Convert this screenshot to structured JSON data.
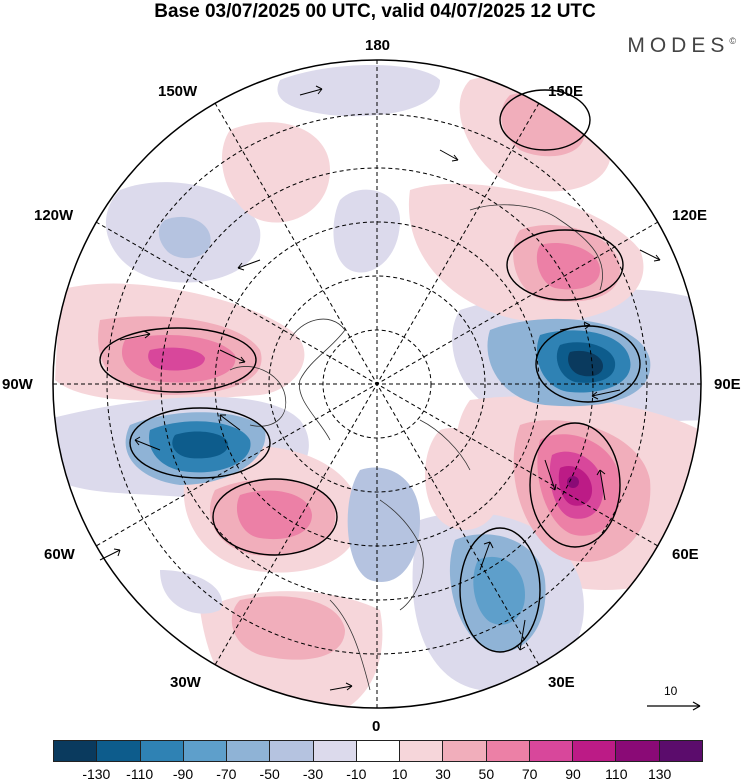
{
  "title": "Base 03/07/2025 00 UTC, valid 04/07/2025 12 UTC",
  "brand": {
    "name": "MODES",
    "mark": "©"
  },
  "longitude_labels": {
    "lon_180": "180",
    "lon_150e": "150E",
    "lon_120e": "120E",
    "lon_90e": "90E",
    "lon_60e": "60E",
    "lon_30e": "30E",
    "lon_0": "0",
    "lon_30w": "30W",
    "lon_60w": "60W",
    "lon_90w": "90W",
    "lon_120w": "120W",
    "lon_150w": "150W"
  },
  "reference_vector": {
    "label": "10"
  },
  "colorbar": {
    "colors": [
      "#0a3a5e",
      "#0d5c8c",
      "#2f82b4",
      "#5e9fcb",
      "#8fb3d6",
      "#b5c3e0",
      "#dcdaec",
      "#ffffff",
      "#f6d6da",
      "#f1aebb",
      "#ec80a6",
      "#d8479b",
      "#bc1b86",
      "#8a0a76",
      "#5b0c6c"
    ],
    "ticks": [
      "-130",
      "-110",
      "-90",
      "-70",
      "-50",
      "-30",
      "-10",
      "10",
      "30",
      "50",
      "70",
      "90",
      "110",
      "130"
    ]
  },
  "anomaly_centers": [
    {
      "id": "canada-positive",
      "sign": "positive",
      "value": 90
    },
    {
      "id": "labrador-negative",
      "sign": "negative",
      "value": -110
    },
    {
      "id": "north-atlantic-positive",
      "sign": "positive",
      "value": 70
    },
    {
      "id": "east-siberia-negative",
      "sign": "negative",
      "value": -110
    },
    {
      "id": "west-siberia-positive",
      "sign": "positive",
      "value": 110
    },
    {
      "id": "east-europe-negative",
      "sign": "negative",
      "value": -90
    },
    {
      "id": "far-east-positive",
      "sign": "positive",
      "value": 70
    },
    {
      "id": "kamchatka-positive",
      "sign": "positive",
      "value": 50
    },
    {
      "id": "alaska-negative",
      "sign": "negative",
      "value": -50
    },
    {
      "id": "scandinavia-negative",
      "sign": "negative",
      "value": -50
    },
    {
      "id": "iberia-positive",
      "sign": "positive",
      "value": 30
    },
    {
      "id": "arctic-positive",
      "sign": "positive",
      "value": 30
    }
  ]
}
